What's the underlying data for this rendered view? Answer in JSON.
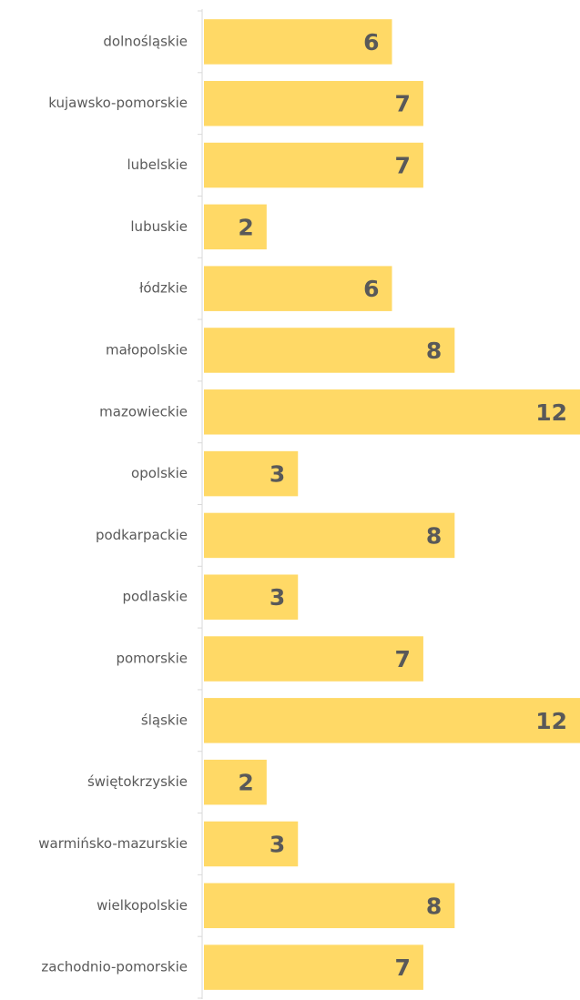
{
  "chart_data": {
    "type": "bar",
    "orientation": "horizontal",
    "categories": [
      "dolnośląskie",
      "kujawsko-pomorskie",
      "lubelskie",
      "lubuskie",
      "łódzkie",
      "małopolskie",
      "mazowieckie",
      "opolskie",
      "podkarpackie",
      "podlaskie",
      "pomorskie",
      "śląskie",
      "świętokrzyskie",
      "warmińsko-mazurskie",
      "wielkopolskie",
      "zachodnio-pomorskie"
    ],
    "values": [
      6,
      7,
      7,
      2,
      6,
      8,
      12,
      3,
      8,
      3,
      7,
      12,
      2,
      3,
      8,
      7
    ],
    "color": "#ffd966",
    "xlim": [
      0,
      12
    ]
  }
}
